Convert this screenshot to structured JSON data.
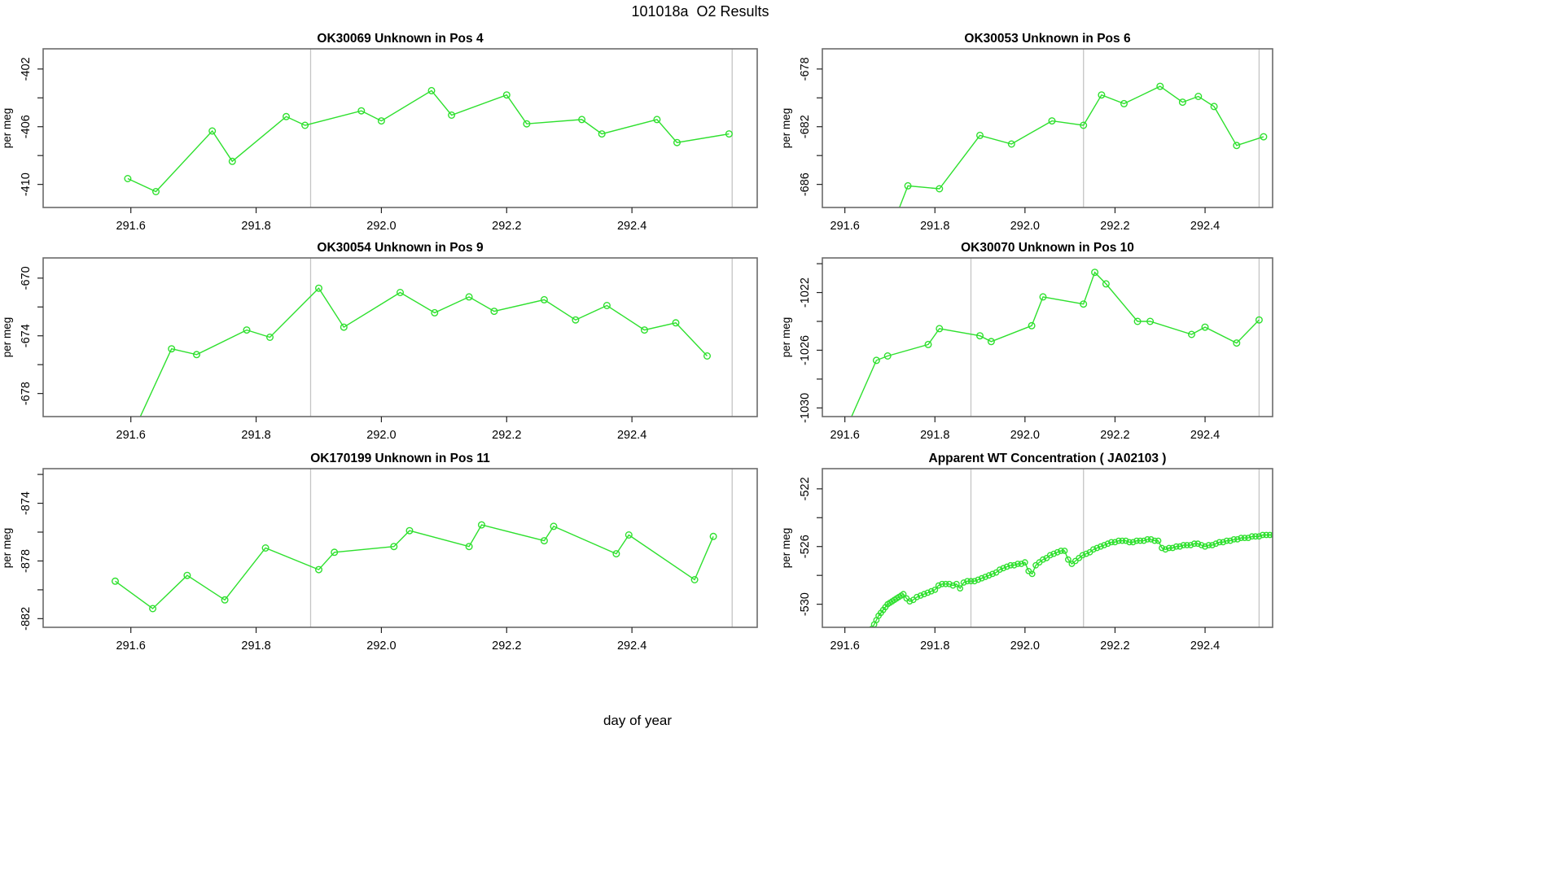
{
  "page_title": "101018a  O2 Results",
  "outer_xlabel": "day of year",
  "colors": {
    "series_green": "#2EE02E",
    "event_line_gray": "#C4C4C4",
    "box_gray": "#6B6B6B",
    "text_black": "#000000",
    "background": "#FFFFFF"
  },
  "chart_data": [
    {
      "type": "line",
      "title": "OK30069   Unknown in Pos 4",
      "ylabel": "per meg",
      "col": 0,
      "row": 0,
      "xlim": [
        291.46,
        292.6
      ],
      "ylim": [
        -411.6,
        -400.6
      ],
      "xticks": [
        {
          "v": 291.6,
          "label": "291.6"
        },
        {
          "v": 291.8,
          "label": "291.8"
        },
        {
          "v": 292.0,
          "label": "292.0"
        },
        {
          "v": 292.2,
          "label": "292.2"
        },
        {
          "v": 292.4,
          "label": "292.4"
        }
      ],
      "yticks_minor": [
        -404,
        -408
      ],
      "yticks_labeled": [
        {
          "v": -402,
          "label": "-402"
        },
        {
          "v": -406,
          "label": "-406"
        },
        {
          "v": -410,
          "label": "-410"
        }
      ],
      "vlines": [
        291.887,
        292.56
      ],
      "points": [
        [
          291.595,
          -409.6
        ],
        [
          291.64,
          -410.5
        ],
        [
          291.73,
          -406.3
        ],
        [
          291.762,
          -408.4
        ],
        [
          291.848,
          -405.3
        ],
        [
          291.878,
          -405.9
        ],
        [
          291.968,
          -404.9
        ],
        [
          292.0,
          -405.6
        ],
        [
          292.08,
          -403.5
        ],
        [
          292.112,
          -405.2
        ],
        [
          292.2,
          -403.8
        ],
        [
          292.232,
          -405.8
        ],
        [
          292.32,
          -405.5
        ],
        [
          292.352,
          -406.5
        ],
        [
          292.44,
          -405.5
        ],
        [
          292.472,
          -407.1
        ],
        [
          292.555,
          -406.5
        ]
      ],
      "marker_radius": 3.8
    },
    {
      "type": "line",
      "title": "OK30053   Unknown in Pos 6",
      "ylabel": "per meg",
      "col": 1,
      "row": 0,
      "xlim": [
        291.55,
        292.55
      ],
      "ylim": [
        -687.6,
        -676.6
      ],
      "xticks": [
        {
          "v": 291.6,
          "label": "291.6"
        },
        {
          "v": 291.8,
          "label": "291.8"
        },
        {
          "v": 292.0,
          "label": "292.0"
        },
        {
          "v": 292.2,
          "label": "292.2"
        },
        {
          "v": 292.4,
          "label": "292.4"
        }
      ],
      "yticks_minor": [
        -680,
        -684
      ],
      "yticks_labeled": [
        {
          "v": -678,
          "label": "-678"
        },
        {
          "v": -682,
          "label": "-682"
        },
        {
          "v": -686,
          "label": "-686"
        }
      ],
      "vlines": [
        292.13,
        292.52
      ],
      "points": [
        [
          291.71,
          -688.5
        ],
        [
          291.74,
          -686.1
        ],
        [
          291.81,
          -686.3
        ],
        [
          291.9,
          -682.6
        ],
        [
          291.97,
          -683.2
        ],
        [
          292.06,
          -681.6
        ],
        [
          292.13,
          -681.9
        ],
        [
          292.17,
          -679.8
        ],
        [
          292.22,
          -680.4
        ],
        [
          292.3,
          -679.2
        ],
        [
          292.35,
          -680.3
        ],
        [
          292.385,
          -679.9
        ],
        [
          292.42,
          -680.6
        ],
        [
          292.47,
          -683.3
        ],
        [
          292.53,
          -682.7
        ]
      ],
      "marker_radius": 3.8
    },
    {
      "type": "line",
      "title": "OK30054   Unknown in Pos 9",
      "ylabel": "per meg",
      "col": 0,
      "row": 1,
      "xlim": [
        291.46,
        292.6
      ],
      "ylim": [
        -679.6,
        -668.6
      ],
      "xticks": [
        {
          "v": 291.6,
          "label": "291.6"
        },
        {
          "v": 291.8,
          "label": "291.8"
        },
        {
          "v": 292.0,
          "label": "292.0"
        },
        {
          "v": 292.2,
          "label": "292.2"
        },
        {
          "v": 292.4,
          "label": "292.4"
        }
      ],
      "yticks_minor": [
        -672,
        -676
      ],
      "yticks_labeled": [
        {
          "v": -670,
          "label": "-670"
        },
        {
          "v": -674,
          "label": "-674"
        },
        {
          "v": -678,
          "label": "-678"
        }
      ],
      "vlines": [
        291.887,
        292.56
      ],
      "points": [
        [
          291.612,
          -679.9
        ],
        [
          291.665,
          -674.9
        ],
        [
          291.705,
          -675.3
        ],
        [
          291.785,
          -673.6
        ],
        [
          291.822,
          -674.1
        ],
        [
          291.9,
          -670.7
        ],
        [
          291.94,
          -673.4
        ],
        [
          292.03,
          -671.0
        ],
        [
          292.085,
          -672.4
        ],
        [
          292.14,
          -671.3
        ],
        [
          292.18,
          -672.3
        ],
        [
          292.26,
          -671.5
        ],
        [
          292.31,
          -672.9
        ],
        [
          292.36,
          -671.9
        ],
        [
          292.42,
          -673.6
        ],
        [
          292.47,
          -673.1
        ],
        [
          292.52,
          -675.4
        ]
      ],
      "marker_radius": 3.8
    },
    {
      "type": "line",
      "title": "OK30070   Unknown in Pos 10",
      "ylabel": "per meg",
      "col": 1,
      "row": 1,
      "xlim": [
        291.55,
        292.55
      ],
      "ylim": [
        -1030.6,
        -1019.6
      ],
      "xticks": [
        {
          "v": 291.6,
          "label": "291.6"
        },
        {
          "v": 291.8,
          "label": "291.8"
        },
        {
          "v": 292.0,
          "label": "292.0"
        },
        {
          "v": 292.2,
          "label": "292.2"
        },
        {
          "v": 292.4,
          "label": "292.4"
        }
      ],
      "yticks_minor": [
        -1020,
        -1024,
        -1028
      ],
      "yticks_labeled": [
        {
          "v": -1022,
          "label": "-1022"
        },
        {
          "v": -1026,
          "label": "-1026"
        },
        {
          "v": -1030,
          "label": "-1030"
        }
      ],
      "vlines": [
        291.88,
        292.52
      ],
      "points": [
        [
          291.605,
          -1031.3
        ],
        [
          291.67,
          -1026.7
        ],
        [
          291.695,
          -1026.4
        ],
        [
          291.785,
          -1025.6
        ],
        [
          291.81,
          -1024.5
        ],
        [
          291.9,
          -1025.0
        ],
        [
          291.925,
          -1025.4
        ],
        [
          292.015,
          -1024.3
        ],
        [
          292.04,
          -1022.3
        ],
        [
          292.13,
          -1022.8
        ],
        [
          292.155,
          -1020.6
        ],
        [
          292.18,
          -1021.4
        ],
        [
          292.25,
          -1024.0
        ],
        [
          292.278,
          -1024.0
        ],
        [
          292.37,
          -1024.9
        ],
        [
          292.4,
          -1024.4
        ],
        [
          292.47,
          -1025.5
        ],
        [
          292.52,
          -1023.9
        ]
      ],
      "marker_radius": 3.8
    },
    {
      "type": "line",
      "title": "OK170199   Unknown in Pos 11",
      "ylabel": "per meg",
      "col": 0,
      "row": 2,
      "xlim": [
        291.46,
        292.6
      ],
      "ylim": [
        -882.6,
        -871.6
      ],
      "xticks": [
        {
          "v": 291.6,
          "label": "291.6"
        },
        {
          "v": 291.8,
          "label": "291.8"
        },
        {
          "v": 292.0,
          "label": "292.0"
        },
        {
          "v": 292.2,
          "label": "292.2"
        },
        {
          "v": 292.4,
          "label": "292.4"
        }
      ],
      "yticks_minor": [
        -872,
        -876,
        -880
      ],
      "yticks_labeled": [
        {
          "v": -874,
          "label": "-874"
        },
        {
          "v": -878,
          "label": "-878"
        },
        {
          "v": -882,
          "label": "-882"
        }
      ],
      "vlines": [
        291.887,
        292.56
      ],
      "points": [
        [
          291.575,
          -879.4
        ],
        [
          291.635,
          -881.3
        ],
        [
          291.69,
          -879.0
        ],
        [
          291.75,
          -880.7
        ],
        [
          291.815,
          -877.1
        ],
        [
          291.9,
          -878.6
        ],
        [
          291.925,
          -877.4
        ],
        [
          292.02,
          -877.0
        ],
        [
          292.045,
          -875.9
        ],
        [
          292.14,
          -877.0
        ],
        [
          292.16,
          -875.5
        ],
        [
          292.26,
          -876.6
        ],
        [
          292.275,
          -875.6
        ],
        [
          292.375,
          -877.5
        ],
        [
          292.395,
          -876.2
        ],
        [
          292.5,
          -879.3
        ],
        [
          292.53,
          -876.3
        ]
      ],
      "marker_radius": 3.8
    },
    {
      "type": "line",
      "title": "Apparent WT Concentration ( JA02103 )",
      "ylabel": "per meg",
      "col": 1,
      "row": 2,
      "xlim": [
        291.55,
        292.55
      ],
      "ylim": [
        -531.6,
        -520.6
      ],
      "xticks": [
        {
          "v": 291.6,
          "label": "291.6"
        },
        {
          "v": 291.8,
          "label": "291.8"
        },
        {
          "v": 292.0,
          "label": "292.0"
        },
        {
          "v": 292.2,
          "label": "292.2"
        },
        {
          "v": 292.4,
          "label": "292.4"
        }
      ],
      "yticks_minor": [
        -524,
        -528
      ],
      "yticks_labeled": [
        {
          "v": -522,
          "label": "-522"
        },
        {
          "v": -526,
          "label": "-526"
        },
        {
          "v": -530,
          "label": "-530"
        }
      ],
      "vlines": [
        291.88,
        292.13,
        292.52
      ],
      "points": [
        [
          291.638,
          -533.0
        ],
        [
          291.645,
          -532.6
        ],
        [
          291.65,
          -532.3
        ],
        [
          291.655,
          -532.0
        ],
        [
          291.66,
          -531.7
        ],
        [
          291.665,
          -531.4
        ],
        [
          291.67,
          -531.1
        ],
        [
          291.675,
          -530.8
        ],
        [
          291.68,
          -530.6
        ],
        [
          291.685,
          -530.4
        ],
        [
          291.69,
          -530.2
        ],
        [
          291.695,
          -530.0
        ],
        [
          291.7,
          -529.9
        ],
        [
          291.705,
          -529.8
        ],
        [
          291.71,
          -529.7
        ],
        [
          291.715,
          -529.6
        ],
        [
          291.72,
          -529.5
        ],
        [
          291.725,
          -529.4
        ],
        [
          291.73,
          -529.3
        ],
        [
          291.737,
          -529.6
        ],
        [
          291.744,
          -529.8
        ],
        [
          291.752,
          -529.7
        ],
        [
          291.76,
          -529.5
        ],
        [
          291.768,
          -529.4
        ],
        [
          291.776,
          -529.3
        ],
        [
          291.784,
          -529.2
        ],
        [
          291.792,
          -529.1
        ],
        [
          291.8,
          -529.0
        ],
        [
          291.808,
          -528.7
        ],
        [
          291.816,
          -528.6
        ],
        [
          291.824,
          -528.6
        ],
        [
          291.832,
          -528.6
        ],
        [
          291.84,
          -528.7
        ],
        [
          291.848,
          -528.6
        ],
        [
          291.856,
          -528.9
        ],
        [
          291.864,
          -528.5
        ],
        [
          291.872,
          -528.4
        ],
        [
          291.88,
          -528.4
        ],
        [
          291.888,
          -528.4
        ],
        [
          291.896,
          -528.3
        ],
        [
          291.904,
          -528.2
        ],
        [
          291.912,
          -528.1
        ],
        [
          291.92,
          -528.0
        ],
        [
          291.928,
          -527.9
        ],
        [
          291.936,
          -527.8
        ],
        [
          291.944,
          -527.6
        ],
        [
          291.952,
          -527.5
        ],
        [
          291.96,
          -527.4
        ],
        [
          291.968,
          -527.3
        ],
        [
          291.976,
          -527.3
        ],
        [
          291.984,
          -527.2
        ],
        [
          291.992,
          -527.2
        ],
        [
          292.0,
          -527.1
        ],
        [
          292.008,
          -527.7
        ],
        [
          292.016,
          -527.9
        ],
        [
          292.024,
          -527.3
        ],
        [
          292.032,
          -527.1
        ],
        [
          292.04,
          -526.9
        ],
        [
          292.048,
          -526.8
        ],
        [
          292.056,
          -526.6
        ],
        [
          292.064,
          -526.5
        ],
        [
          292.072,
          -526.4
        ],
        [
          292.08,
          -526.3
        ],
        [
          292.088,
          -526.3
        ],
        [
          292.096,
          -526.9
        ],
        [
          292.104,
          -527.2
        ],
        [
          292.112,
          -527.0
        ],
        [
          292.12,
          -526.8
        ],
        [
          292.128,
          -526.6
        ],
        [
          292.136,
          -526.5
        ],
        [
          292.144,
          -526.4
        ],
        [
          292.152,
          -526.2
        ],
        [
          292.16,
          -526.1
        ],
        [
          292.168,
          -526.0
        ],
        [
          292.176,
          -525.9
        ],
        [
          292.184,
          -525.8
        ],
        [
          292.192,
          -525.7
        ],
        [
          292.2,
          -525.7
        ],
        [
          292.208,
          -525.6
        ],
        [
          292.216,
          -525.6
        ],
        [
          292.224,
          -525.6
        ],
        [
          292.232,
          -525.7
        ],
        [
          292.24,
          -525.7
        ],
        [
          292.248,
          -525.6
        ],
        [
          292.256,
          -525.6
        ],
        [
          292.264,
          -525.6
        ],
        [
          292.272,
          -525.5
        ],
        [
          292.28,
          -525.5
        ],
        [
          292.288,
          -525.6
        ],
        [
          292.296,
          -525.6
        ],
        [
          292.304,
          -526.1
        ],
        [
          292.312,
          -526.2
        ],
        [
          292.32,
          -526.1
        ],
        [
          292.328,
          -526.1
        ],
        [
          292.336,
          -526.0
        ],
        [
          292.344,
          -526.0
        ],
        [
          292.352,
          -525.9
        ],
        [
          292.36,
          -525.9
        ],
        [
          292.368,
          -525.9
        ],
        [
          292.376,
          -525.8
        ],
        [
          292.384,
          -525.8
        ],
        [
          292.392,
          -525.9
        ],
        [
          292.4,
          -526.0
        ],
        [
          292.408,
          -525.9
        ],
        [
          292.416,
          -525.9
        ],
        [
          292.424,
          -525.8
        ],
        [
          292.432,
          -525.7
        ],
        [
          292.44,
          -525.7
        ],
        [
          292.448,
          -525.6
        ],
        [
          292.456,
          -525.6
        ],
        [
          292.464,
          -525.5
        ],
        [
          292.472,
          -525.5
        ],
        [
          292.48,
          -525.4
        ],
        [
          292.488,
          -525.4
        ],
        [
          292.496,
          -525.4
        ],
        [
          292.504,
          -525.3
        ],
        [
          292.512,
          -525.3
        ],
        [
          292.52,
          -525.3
        ],
        [
          292.528,
          -525.2
        ],
        [
          292.536,
          -525.2
        ],
        [
          292.544,
          -525.2
        ],
        [
          292.552,
          -525.2
        ]
      ],
      "marker_radius": 3.2
    }
  ]
}
